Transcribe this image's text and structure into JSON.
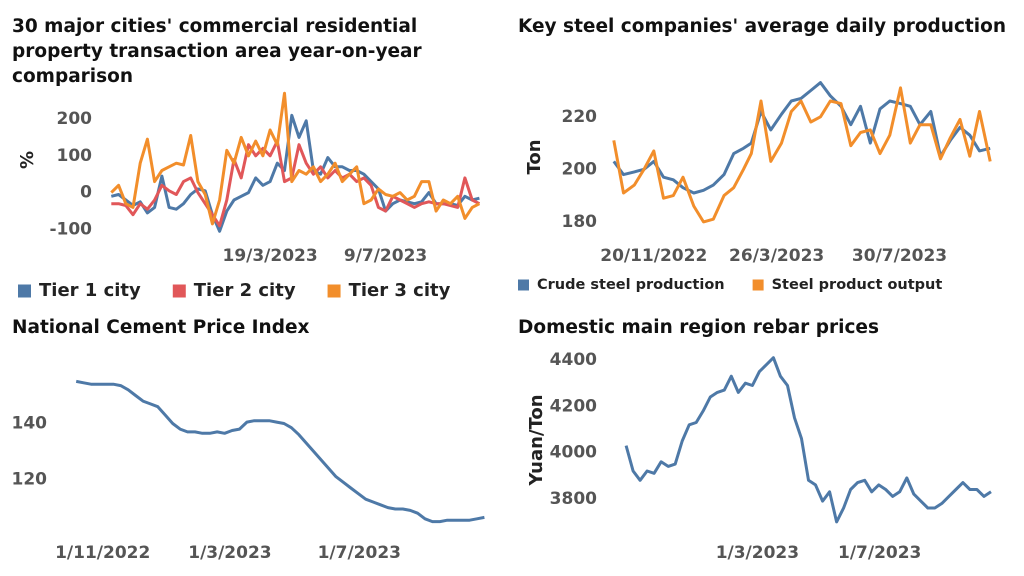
{
  "chart_data": [
    {
      "type": "line",
      "title": "30 major cities' commercial residential property transaction area year-on-year comparison",
      "ylabel": "%",
      "x": [
        "2022-10-16",
        "2022-10-23",
        "2022-10-30",
        "2022-11-06",
        "2022-11-13",
        "2022-11-20",
        "2022-11-27",
        "2022-12-04",
        "2022-12-11",
        "2022-12-18",
        "2022-12-25",
        "2023-01-01",
        "2023-01-08",
        "2023-01-15",
        "2023-01-22",
        "2023-01-29",
        "2023-02-05",
        "2023-02-12",
        "2023-02-19",
        "2023-02-26",
        "2023-03-05",
        "2023-03-12",
        "2023-03-19",
        "2023-03-26",
        "2023-04-02",
        "2023-04-09",
        "2023-04-16",
        "2023-04-23",
        "2023-04-30",
        "2023-05-07",
        "2023-05-14",
        "2023-05-21",
        "2023-05-28",
        "2023-06-04",
        "2023-06-11",
        "2023-06-18",
        "2023-06-25",
        "2023-07-02",
        "2023-07-09",
        "2023-07-16",
        "2023-07-23",
        "2023-07-30",
        "2023-08-06",
        "2023-08-13",
        "2023-08-20",
        "2023-08-27",
        "2023-09-03",
        "2023-09-10",
        "2023-09-17",
        "2023-09-24",
        "2023-10-01",
        "2023-10-08"
      ],
      "series": [
        {
          "name": "Tier 1 city",
          "color": "#4e79a7",
          "values": [
            -10,
            -5,
            -20,
            -35,
            -25,
            -55,
            -40,
            45,
            -40,
            -45,
            -30,
            -5,
            10,
            5,
            -60,
            -105,
            -50,
            -20,
            -10,
            0,
            40,
            20,
            30,
            80,
            60,
            210,
            150,
            195,
            60,
            50,
            95,
            70,
            70,
            60,
            60,
            50,
            30,
            10,
            -50,
            -30,
            -20,
            -25,
            -30,
            -25,
            0,
            -30,
            -30,
            -30,
            -35,
            -10,
            -20,
            -15
          ]
        },
        {
          "name": "Tier 2 city",
          "color": "#e15759",
          "values": [
            -30,
            -30,
            -35,
            -60,
            -30,
            -45,
            -20,
            20,
            5,
            -5,
            30,
            40,
            0,
            -30,
            -60,
            -90,
            -20,
            90,
            40,
            130,
            100,
            120,
            100,
            140,
            30,
            40,
            130,
            80,
            50,
            70,
            40,
            60,
            40,
            50,
            30,
            40,
            20,
            -40,
            -50,
            -10,
            -20,
            -30,
            -40,
            -30,
            -25,
            -30,
            -30,
            -35,
            -40,
            40,
            -20,
            -30
          ]
        },
        {
          "name": "Tier 3 city",
          "color": "#f28e2b",
          "values": [
            0,
            20,
            -30,
            -40,
            80,
            145,
            30,
            60,
            70,
            80,
            75,
            155,
            30,
            -5,
            -85,
            -20,
            115,
            80,
            150,
            100,
            140,
            100,
            170,
            130,
            270,
            30,
            60,
            50,
            70,
            30,
            50,
            80,
            30,
            50,
            70,
            -30,
            -20,
            10,
            -5,
            -10,
            0,
            -20,
            -10,
            30,
            30,
            -50,
            -20,
            -30,
            -10,
            -70,
            -40,
            -30
          ]
        }
      ],
      "xlim": [
        "2022-10-05",
        "2023-10-28"
      ],
      "xticks": [
        {
          "value": "2023-03-19",
          "label": "19/3/2023"
        },
        {
          "value": "2023-07-09",
          "label": "9/7/2023"
        }
      ],
      "ylim": [
        -115,
        265
      ],
      "yticks": [
        200,
        100,
        0,
        -100
      ],
      "legend": "bottom"
    },
    {
      "type": "line",
      "title": "Key steel companies' average daily production",
      "ylabel": "Ton",
      "x": [
        "2022-10-10",
        "2022-10-20",
        "2022-10-31",
        "2022-11-10",
        "2022-11-20",
        "2022-11-30",
        "2022-12-10",
        "2022-12-20",
        "2022-12-31",
        "2023-01-10",
        "2023-01-20",
        "2023-01-31",
        "2023-02-10",
        "2023-02-20",
        "2023-02-28",
        "2023-03-10",
        "2023-03-20",
        "2023-03-31",
        "2023-04-10",
        "2023-04-20",
        "2023-04-30",
        "2023-05-10",
        "2023-05-20",
        "2023-05-31",
        "2023-06-10",
        "2023-06-20",
        "2023-06-30",
        "2023-07-10",
        "2023-07-20",
        "2023-07-31",
        "2023-08-10",
        "2023-08-20",
        "2023-08-31",
        "2023-09-10",
        "2023-09-20",
        "2023-09-30",
        "2023-10-10",
        "2023-10-20",
        "2023-10-31"
      ],
      "series": [
        {
          "name": "Crude steel production",
          "color": "#4e79a7",
          "values": [
            203,
            198,
            199,
            200,
            203,
            197,
            196,
            193,
            191,
            192,
            194,
            198,
            206,
            208,
            210,
            222,
            215,
            221,
            226,
            227,
            230,
            233,
            228,
            224,
            217,
            224,
            210,
            223,
            226,
            225,
            224,
            217,
            222,
            205,
            211,
            216,
            213,
            207,
            208
          ]
        },
        {
          "name": "Steel product output",
          "color": "#f28e2b",
          "values": [
            211,
            191,
            194,
            200,
            207,
            189,
            190,
            197,
            186,
            180,
            181,
            190,
            193,
            200,
            206,
            226,
            203,
            210,
            222,
            226,
            218,
            220,
            226,
            225,
            209,
            214,
            215,
            206,
            213,
            231,
            210,
            217,
            217,
            204,
            212,
            219,
            205,
            222,
            203
          ]
        }
      ],
      "xlim": [
        "2022-10-01",
        "2023-11-10"
      ],
      "xticks": [
        {
          "value": "2022-11-20",
          "label": "20/11/2022"
        },
        {
          "value": "2023-03-26",
          "label": "26/3/2023"
        },
        {
          "value": "2023-07-30",
          "label": "30/7/2023"
        }
      ],
      "ylim": [
        175,
        234
      ],
      "yticks": [
        220,
        200,
        180
      ],
      "legend": "bottom"
    },
    {
      "type": "line",
      "title": "National Cement Price Index",
      "color": "#4e79a7",
      "x": [
        "2022-10-07",
        "2022-10-14",
        "2022-10-21",
        "2022-10-28",
        "2022-11-04",
        "2022-11-11",
        "2022-11-18",
        "2022-11-25",
        "2022-12-02",
        "2022-12-09",
        "2022-12-16",
        "2022-12-23",
        "2022-12-30",
        "2023-01-06",
        "2023-01-13",
        "2023-01-20",
        "2023-01-27",
        "2023-02-03",
        "2023-02-10",
        "2023-02-17",
        "2023-02-24",
        "2023-03-03",
        "2023-03-10",
        "2023-03-17",
        "2023-03-24",
        "2023-03-31",
        "2023-04-07",
        "2023-04-14",
        "2023-04-21",
        "2023-04-28",
        "2023-05-05",
        "2023-05-12",
        "2023-05-19",
        "2023-05-26",
        "2023-06-02",
        "2023-06-09",
        "2023-06-16",
        "2023-06-23",
        "2023-06-30",
        "2023-07-07",
        "2023-07-14",
        "2023-07-21",
        "2023-07-28",
        "2023-08-04",
        "2023-08-11",
        "2023-08-18",
        "2023-08-25",
        "2023-09-01",
        "2023-09-08",
        "2023-09-15",
        "2023-09-22",
        "2023-09-29",
        "2023-10-06",
        "2023-10-13",
        "2023-10-20",
        "2023-10-27"
      ],
      "values": [
        155,
        154.5,
        154,
        154,
        154,
        154,
        153.5,
        152,
        150,
        148,
        147,
        146,
        143,
        140,
        138,
        137,
        137,
        136.5,
        136.5,
        137,
        136.5,
        137.5,
        138,
        140.5,
        141,
        141,
        141,
        140.5,
        140,
        138.5,
        136,
        133,
        130,
        127,
        124,
        121,
        119,
        117,
        115,
        113,
        112,
        111,
        110,
        109.5,
        109.5,
        109,
        108,
        106,
        105,
        105,
        105.5,
        105.5,
        105.5,
        105.5,
        106,
        106.5
      ],
      "xlim": [
        "2022-09-17",
        "2023-11-06"
      ],
      "xticks": [
        {
          "value": "2022-11-01",
          "label": "1/11/2022"
        },
        {
          "value": "2023-03-01",
          "label": "1/3/2023"
        },
        {
          "value": "2023-07-01",
          "label": "1/7/2023"
        }
      ],
      "ylim": [
        102,
        168
      ],
      "yticks": [
        140,
        120
      ]
    },
    {
      "type": "line",
      "title": "Domestic main region rebar prices",
      "ylabel": "Yuan/Ton",
      "color": "#4e79a7",
      "x": [
        "2022-10-21",
        "2022-10-28",
        "2022-11-04",
        "2022-11-11",
        "2022-11-18",
        "2022-11-25",
        "2022-12-02",
        "2022-12-09",
        "2022-12-16",
        "2022-12-23",
        "2022-12-30",
        "2023-01-06",
        "2023-01-13",
        "2023-01-20",
        "2023-01-27",
        "2023-02-03",
        "2023-02-10",
        "2023-02-17",
        "2023-02-24",
        "2023-03-03",
        "2023-03-10",
        "2023-03-17",
        "2023-03-24",
        "2023-03-31",
        "2023-04-07",
        "2023-04-14",
        "2023-04-21",
        "2023-04-28",
        "2023-05-05",
        "2023-05-12",
        "2023-05-19",
        "2023-05-26",
        "2023-06-02",
        "2023-06-09",
        "2023-06-16",
        "2023-06-23",
        "2023-06-30",
        "2023-07-07",
        "2023-07-14",
        "2023-07-21",
        "2023-07-28",
        "2023-08-04",
        "2023-08-11",
        "2023-08-18",
        "2023-08-25",
        "2023-09-01",
        "2023-09-08",
        "2023-09-15",
        "2023-09-22",
        "2023-09-29",
        "2023-10-06",
        "2023-10-13",
        "2023-10-20"
      ],
      "values": [
        4030,
        3920,
        3880,
        3920,
        3910,
        3960,
        3940,
        3950,
        4050,
        4120,
        4130,
        4180,
        4240,
        4260,
        4270,
        4330,
        4260,
        4300,
        4290,
        4350,
        4380,
        4410,
        4330,
        4290,
        4150,
        4060,
        3880,
        3860,
        3790,
        3830,
        3700,
        3760,
        3840,
        3870,
        3880,
        3830,
        3860,
        3840,
        3810,
        3830,
        3890,
        3820,
        3790,
        3760,
        3760,
        3780,
        3810,
        3840,
        3870,
        3840,
        3840,
        3810,
        3830
      ],
      "xlim": [
        "2022-09-30",
        "2023-10-29"
      ],
      "xticks": [
        {
          "value": "2023-03-01",
          "label": "1/3/2023"
        },
        {
          "value": "2023-07-01",
          "label": "1/7/2023"
        }
      ],
      "ylim": [
        3600,
        4465
      ],
      "yticks": [
        4400,
        4200,
        4000,
        3800
      ]
    }
  ]
}
